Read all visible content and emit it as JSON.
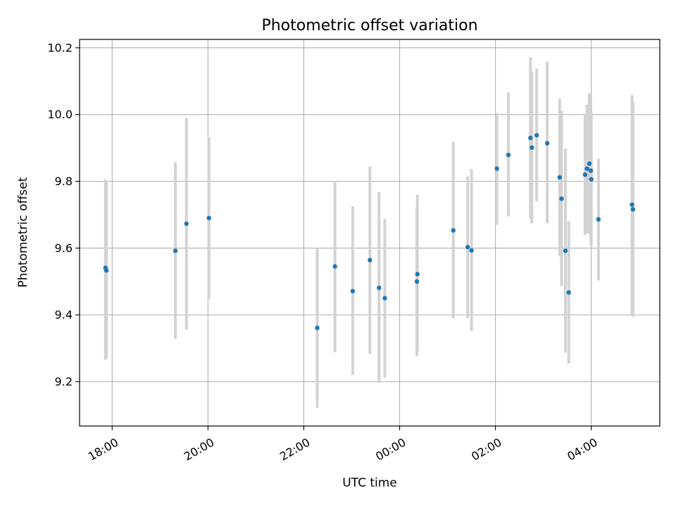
{
  "chart_data": {
    "type": "scatter",
    "title": "Photometric offset variation",
    "xlabel": "UTC time",
    "ylabel": "Photometric offset",
    "x_axis": {
      "unit": "hours since 00:00 UTC (negative = previous day)",
      "range": [
        -6.68,
        5.43
      ],
      "ticks": [
        {
          "value": -6,
          "label": "18:00"
        },
        {
          "value": -4,
          "label": "20:00"
        },
        {
          "value": -2,
          "label": "22:00"
        },
        {
          "value": 0,
          "label": "00:00"
        },
        {
          "value": 2,
          "label": "02:00"
        },
        {
          "value": 4,
          "label": "04:00"
        }
      ]
    },
    "y_axis": {
      "range": [
        9.067,
        10.225
      ],
      "ticks": [
        {
          "value": 9.2,
          "label": "9.2"
        },
        {
          "value": 9.4,
          "label": "9.4"
        },
        {
          "value": 9.6,
          "label": "9.6"
        },
        {
          "value": 9.8,
          "label": "9.8"
        },
        {
          "value": 10.0,
          "label": "10.0"
        },
        {
          "value": 10.2,
          "label": "10.2"
        }
      ]
    },
    "grid": true,
    "colors": {
      "points": "#1f77b4",
      "errorbars": "#d3d3d3",
      "grid": "#b0b0b0"
    },
    "points": [
      {
        "x": -6.14,
        "y": 9.541,
        "ylow": 9.265,
        "yhigh": 9.805
      },
      {
        "x": -6.12,
        "y": 9.533,
        "ylow": 9.27,
        "yhigh": 9.8
      },
      {
        "x": -4.68,
        "y": 9.592,
        "ylow": 9.328,
        "yhigh": 9.857
      },
      {
        "x": -4.45,
        "y": 9.673,
        "ylow": 9.356,
        "yhigh": 9.99
      },
      {
        "x": -3.98,
        "y": 9.69,
        "ylow": 9.447,
        "yhigh": 9.932
      },
      {
        "x": -1.72,
        "y": 9.361,
        "ylow": 9.121,
        "yhigh": 9.601
      },
      {
        "x": -1.35,
        "y": 9.545,
        "ylow": 9.288,
        "yhigh": 9.8
      },
      {
        "x": -0.98,
        "y": 9.471,
        "ylow": 9.22,
        "yhigh": 9.725
      },
      {
        "x": -0.62,
        "y": 9.564,
        "ylow": 9.283,
        "yhigh": 9.844
      },
      {
        "x": -0.43,
        "y": 9.481,
        "ylow": 9.196,
        "yhigh": 9.768
      },
      {
        "x": -0.31,
        "y": 9.45,
        "ylow": 9.212,
        "yhigh": 9.687
      },
      {
        "x": 0.37,
        "y": 9.522,
        "ylow": 9.29,
        "yhigh": 9.76
      },
      {
        "x": 0.36,
        "y": 9.5,
        "ylow": 9.277,
        "yhigh": 9.72
      },
      {
        "x": 1.12,
        "y": 9.653,
        "ylow": 9.39,
        "yhigh": 9.918
      },
      {
        "x": 1.42,
        "y": 9.603,
        "ylow": 9.39,
        "yhigh": 9.815
      },
      {
        "x": 1.5,
        "y": 9.593,
        "ylow": 9.352,
        "yhigh": 9.837
      },
      {
        "x": 2.03,
        "y": 9.838,
        "ylow": 9.67,
        "yhigh": 10.004
      },
      {
        "x": 2.27,
        "y": 9.879,
        "ylow": 9.695,
        "yhigh": 10.066
      },
      {
        "x": 2.73,
        "y": 9.93,
        "ylow": 9.689,
        "yhigh": 10.172
      },
      {
        "x": 2.76,
        "y": 9.901,
        "ylow": 9.674,
        "yhigh": 10.128
      },
      {
        "x": 2.86,
        "y": 9.938,
        "ylow": 9.74,
        "yhigh": 10.138
      },
      {
        "x": 3.08,
        "y": 9.914,
        "ylow": 9.674,
        "yhigh": 10.158
      },
      {
        "x": 3.34,
        "y": 9.812,
        "ylow": 9.576,
        "yhigh": 10.047
      },
      {
        "x": 3.38,
        "y": 9.748,
        "ylow": 9.486,
        "yhigh": 10.012
      },
      {
        "x": 3.46,
        "y": 9.592,
        "ylow": 9.287,
        "yhigh": 9.898
      },
      {
        "x": 3.53,
        "y": 9.467,
        "ylow": 9.254,
        "yhigh": 9.68
      },
      {
        "x": 3.87,
        "y": 9.82,
        "ylow": 9.64,
        "yhigh": 10.0
      },
      {
        "x": 3.91,
        "y": 9.838,
        "ylow": 9.645,
        "yhigh": 10.03
      },
      {
        "x": 3.96,
        "y": 9.853,
        "ylow": 9.642,
        "yhigh": 10.063
      },
      {
        "x": 3.99,
        "y": 9.832,
        "ylow": 9.62,
        "yhigh": 10.04
      },
      {
        "x": 4.0,
        "y": 9.806,
        "ylow": 9.607,
        "yhigh": 10.005
      },
      {
        "x": 4.15,
        "y": 9.686,
        "ylow": 9.503,
        "yhigh": 9.868
      },
      {
        "x": 4.85,
        "y": 9.73,
        "ylow": 9.4,
        "yhigh": 10.058
      },
      {
        "x": 4.87,
        "y": 9.716,
        "ylow": 9.393,
        "yhigh": 10.04
      }
    ]
  }
}
